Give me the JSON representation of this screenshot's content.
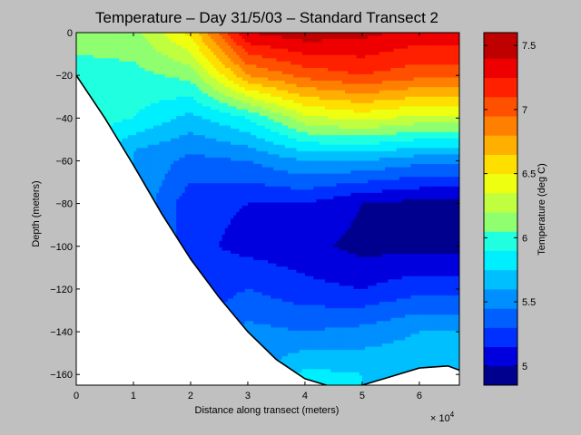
{
  "chart_data": {
    "type": "heatmap",
    "subtype": "filled-contour",
    "title": "Temperature – Day 31/5/03 – Standard Transect 2",
    "xlabel": "Distance along transect (meters)",
    "ylabel": "Depth (meters)",
    "x_multiplier_label": "× 10",
    "x_multiplier_exponent": "4",
    "xlim": [
      0,
      6.7
    ],
    "ylim": [
      -165,
      0
    ],
    "x_ticks": [
      "0",
      "1",
      "2",
      "3",
      "4",
      "5",
      "6"
    ],
    "y_ticks": [
      "0",
      "−20",
      "−40",
      "−60",
      "−80",
      "−100",
      "−120",
      "−140",
      "−160"
    ],
    "colorbar": {
      "label": "Temperature (deg C)",
      "range": [
        4.85,
        7.6
      ],
      "ticks": [
        "5",
        "5.5",
        "6",
        "6.5",
        "7",
        "7.5"
      ],
      "tick_values": [
        5,
        5.5,
        6,
        6.5,
        7,
        7.5
      ],
      "levels": [
        4.85,
        5.0,
        5.15,
        5.3,
        5.45,
        5.6,
        5.75,
        5.9,
        6.05,
        6.2,
        6.35,
        6.5,
        6.65,
        6.8,
        6.95,
        7.1,
        7.25,
        7.4,
        7.6
      ],
      "colors": [
        "#00008f",
        "#0000df",
        "#0030ff",
        "#0060ff",
        "#008fff",
        "#00bfff",
        "#00efff",
        "#20ffdf",
        "#8fff70",
        "#bfff40",
        "#efff10",
        "#ffdf00",
        "#ffaf00",
        "#ff8000",
        "#ff5000",
        "#ff2000",
        "#ef0000",
        "#bf0000"
      ]
    },
    "temperature_profiles": [
      {
        "x": 0.0,
        "depth": [
          0,
          -20
        ],
        "temp": [
          6.1,
          6.0
        ]
      },
      {
        "x": 1.0,
        "depth": [
          0,
          -20,
          -40,
          -55
        ],
        "temp": [
          6.15,
          6.0,
          5.9,
          5.6
        ]
      },
      {
        "x": 2.0,
        "depth": [
          0,
          -20,
          -40,
          -60,
          -80,
          -100
        ],
        "temp": [
          6.55,
          6.1,
          5.7,
          5.4,
          5.2,
          5.2
        ]
      },
      {
        "x": 3.0,
        "depth": [
          0,
          -20,
          -40,
          -60,
          -80,
          -100,
          -120,
          -140
        ],
        "temp": [
          7.4,
          6.8,
          5.9,
          5.45,
          5.15,
          5.1,
          5.3,
          5.5
        ]
      },
      {
        "x": 4.0,
        "depth": [
          0,
          -20,
          -40,
          -60,
          -80,
          -100,
          -120,
          -140,
          -160
        ],
        "temp": [
          7.5,
          7.0,
          6.3,
          5.6,
          5.15,
          5.05,
          5.2,
          5.45,
          5.8
        ]
      },
      {
        "x": 5.0,
        "depth": [
          0,
          -20,
          -40,
          -60,
          -80,
          -100,
          -120,
          -140,
          -160
        ],
        "temp": [
          7.45,
          7.1,
          6.4,
          5.6,
          5.0,
          4.95,
          5.15,
          5.5,
          5.75
        ]
      },
      {
        "x": 6.0,
        "depth": [
          0,
          -20,
          -40,
          -60,
          -80,
          -100,
          -120,
          -140,
          -155
        ],
        "temp": [
          7.35,
          7.0,
          6.3,
          5.5,
          4.95,
          4.95,
          5.25,
          5.6,
          5.7
        ]
      }
    ],
    "seafloor": {
      "x": [
        0,
        0.5,
        1.0,
        1.5,
        2.0,
        2.5,
        3.0,
        3.5,
        4.0,
        4.5,
        5.0,
        5.5,
        6.0,
        6.5,
        6.7
      ],
      "depth": [
        -20,
        -40,
        -62,
        -85,
        -106,
        -124,
        -140,
        -153,
        -162,
        -166,
        -165,
        -161,
        -157,
        -156,
        -158
      ]
    },
    "grid": false,
    "legend": "none"
  }
}
